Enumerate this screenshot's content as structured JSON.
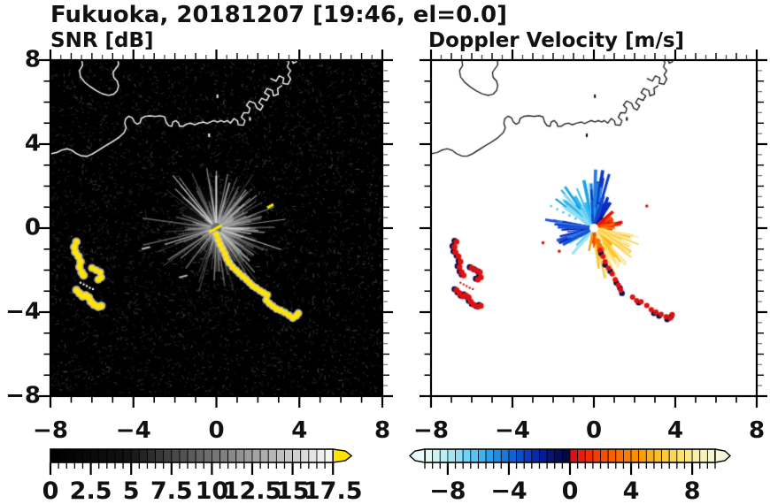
{
  "figure": {
    "title": "Fukuoka, 20181207 [19:46, el=0.0]"
  },
  "map": {
    "coastline": [
      [
        [
          -6.5,
          8.1
        ],
        [
          -6.45,
          7.75
        ],
        [
          -6.6,
          7.5
        ],
        [
          -6.55,
          7.2
        ],
        [
          -6.35,
          6.95
        ],
        [
          -6.1,
          6.75
        ],
        [
          -5.8,
          6.55
        ],
        [
          -5.5,
          6.4
        ],
        [
          -5.2,
          6.32
        ],
        [
          -4.95,
          6.38
        ],
        [
          -4.78,
          6.55
        ],
        [
          -4.72,
          6.78
        ],
        [
          -4.78,
          7.0
        ],
        [
          -4.95,
          7.18
        ],
        [
          -4.98,
          7.42
        ],
        [
          -4.85,
          7.6
        ],
        [
          -4.72,
          7.78
        ],
        [
          -4.75,
          8.1
        ]
      ],
      [
        [
          -8.1,
          3.52
        ],
        [
          -7.7,
          3.6
        ],
        [
          -7.45,
          3.72
        ],
        [
          -7.2,
          3.78
        ],
        [
          -6.95,
          3.7
        ],
        [
          -6.75,
          3.55
        ],
        [
          -6.5,
          3.44
        ],
        [
          -6.25,
          3.42
        ],
        [
          -6.0,
          3.52
        ],
        [
          -5.7,
          3.7
        ],
        [
          -5.35,
          3.92
        ],
        [
          -5.0,
          4.12
        ],
        [
          -4.7,
          4.32
        ],
        [
          -4.45,
          4.55
        ],
        [
          -4.35,
          4.78
        ],
        [
          -4.42,
          4.98
        ],
        [
          -4.38,
          5.2
        ],
        [
          -4.22,
          5.33
        ],
        [
          -4.05,
          5.25
        ],
        [
          -3.95,
          5.05
        ],
        [
          -3.82,
          4.95
        ],
        [
          -3.68,
          5.02
        ],
        [
          -3.62,
          5.22
        ],
        [
          -3.45,
          5.32
        ],
        [
          -3.2,
          5.35
        ],
        [
          -2.95,
          5.32
        ],
        [
          -2.7,
          5.35
        ],
        [
          -2.5,
          5.3
        ],
        [
          -2.42,
          5.05
        ],
        [
          -2.3,
          4.88
        ],
        [
          -2.15,
          4.85
        ],
        [
          -2.1,
          5.05
        ],
        [
          -1.95,
          5.12
        ],
        [
          -1.82,
          5.0
        ],
        [
          -1.78,
          4.85
        ],
        [
          -1.6,
          4.85
        ],
        [
          -1.45,
          4.95
        ],
        [
          -1.25,
          5.0
        ],
        [
          -1.05,
          4.92
        ],
        [
          -0.85,
          5.0
        ],
        [
          -0.62,
          5.05
        ],
        [
          -0.45,
          4.98
        ],
        [
          -0.3,
          5.05
        ],
        [
          -0.12,
          5.12
        ],
        [
          0.05,
          5.05
        ],
        [
          0.22,
          5.12
        ],
        [
          0.38,
          5.05
        ],
        [
          0.52,
          5.12
        ],
        [
          0.68,
          5.0
        ],
        [
          0.85,
          5.22
        ],
        [
          1.02,
          5.1
        ],
        [
          1.05,
          4.92
        ],
        [
          1.3,
          4.9
        ],
        [
          1.38,
          5.12
        ],
        [
          1.2,
          5.28
        ],
        [
          1.32,
          5.5
        ],
        [
          1.55,
          5.48
        ],
        [
          1.62,
          5.7
        ],
        [
          1.45,
          5.85
        ],
        [
          1.6,
          6.05
        ],
        [
          1.85,
          5.95
        ],
        [
          1.95,
          5.72
        ],
        [
          2.12,
          5.62
        ],
        [
          2.25,
          5.82
        ],
        [
          2.05,
          5.98
        ],
        [
          2.18,
          6.18
        ],
        [
          2.42,
          6.08
        ],
        [
          2.55,
          6.3
        ],
        [
          2.32,
          6.45
        ],
        [
          2.45,
          6.65
        ],
        [
          2.7,
          6.55
        ],
        [
          2.75,
          6.3
        ],
        [
          2.98,
          6.38
        ],
        [
          2.95,
          6.65
        ],
        [
          3.15,
          6.78
        ]
      ],
      [
        [
          2.62,
          7.12
        ],
        [
          2.88,
          7.0
        ],
        [
          3.02,
          7.25
        ],
        [
          3.25,
          7.15
        ],
        [
          3.2,
          6.9
        ],
        [
          3.45,
          6.85
        ],
        [
          3.58,
          7.1
        ],
        [
          3.45,
          7.3
        ],
        [
          3.58,
          7.5
        ],
        [
          3.42,
          7.68
        ],
        [
          3.5,
          7.9
        ],
        [
          3.3,
          8.1
        ]
      ],
      [
        [
          3.62,
          8.1
        ],
        [
          3.7,
          7.85
        ],
        [
          3.85,
          7.92
        ],
        [
          3.9,
          8.1
        ]
      ]
    ],
    "dots": [
      [
        0.05,
        6.28
      ],
      [
        -0.35,
        4.42
      ],
      [
        1.62,
        5.2
      ]
    ]
  },
  "chart_data": [
    {
      "id": "snr",
      "type": "heatmap",
      "title": "SNR [dB]",
      "xlim": [
        -8,
        8
      ],
      "ylim": [
        -8,
        8
      ],
      "x_tick_values": [
        -8,
        -4,
        0,
        4,
        8
      ],
      "x_tick_labels": [
        "−8",
        "−4",
        "0",
        "4",
        "8"
      ],
      "y_tick_values": [
        8,
        4,
        0,
        -4,
        -8
      ],
      "y_tick_labels": [
        "8",
        "4",
        "0",
        "−4",
        "−8"
      ],
      "background": "#000000",
      "coast_color": "#ffffff",
      "radar_center": [
        0,
        0
      ],
      "colorbar": {
        "min": 0,
        "max": 17.5,
        "cell_step": 0.5,
        "tick_values": [
          0,
          2.5,
          5,
          7.5,
          10,
          12.5,
          15,
          17.5
        ],
        "tick_labels": [
          "0",
          "2.5",
          "5",
          "7.5",
          "10",
          "12.5",
          "15",
          "17.5"
        ],
        "style": "grayscale",
        "overflow_high_color": "#ffe400"
      },
      "features": {
        "noise": {
          "seed": 11,
          "strokes": 3200,
          "dots": 750
        },
        "ray_fan": {
          "seed": 5,
          "count": 170,
          "len": [
            0.35,
            3.2
          ],
          "bias_sector": [
            -80,
            60
          ],
          "bias_count": 70,
          "bright_count": 16,
          "bright_len": [
            2.2,
            3.7
          ]
        },
        "high_color": "#ffe400",
        "halo_color": "#bdbdbd",
        "trail": [
          [
            0.0,
            -0.3
          ],
          [
            0.08,
            -0.55
          ],
          [
            0.18,
            -0.78
          ],
          [
            0.3,
            -1.0
          ],
          [
            0.42,
            -1.22
          ],
          [
            0.5,
            -1.45
          ],
          [
            0.62,
            -1.65
          ],
          [
            0.78,
            -1.85
          ],
          [
            0.95,
            -2.0
          ],
          [
            1.1,
            -2.15
          ],
          [
            1.28,
            -2.3
          ],
          [
            1.45,
            -2.45
          ],
          [
            1.6,
            -2.6
          ],
          [
            1.75,
            -2.75
          ],
          [
            1.92,
            -2.85
          ],
          [
            2.1,
            -2.98
          ],
          [
            2.28,
            -3.08
          ],
          [
            2.45,
            -3.18
          ],
          [
            2.4,
            -3.42
          ],
          [
            2.55,
            -3.58
          ],
          [
            2.72,
            -3.72
          ],
          [
            2.9,
            -3.85
          ],
          [
            3.1,
            -3.92
          ],
          [
            3.3,
            -4.02
          ],
          [
            3.5,
            -4.15
          ],
          [
            3.68,
            -4.28
          ],
          [
            3.85,
            -4.18
          ],
          [
            3.95,
            -4.05
          ]
        ],
        "cluster_a": [
          [
            -6.75,
            -0.65
          ],
          [
            -6.85,
            -0.9
          ],
          [
            -6.8,
            -1.15
          ],
          [
            -6.65,
            -1.35
          ],
          [
            -6.55,
            -1.6
          ],
          [
            -6.6,
            -1.85
          ],
          [
            -6.5,
            -2.1
          ],
          [
            -6.4,
            -2.25
          ]
        ],
        "cluster_b": [
          [
            -6.0,
            -1.9
          ],
          [
            -5.8,
            -2.0
          ],
          [
            -5.6,
            -2.1
          ],
          [
            -5.55,
            -2.35
          ],
          [
            -5.7,
            -2.45
          ]
        ],
        "cluster_c": [
          [
            -6.75,
            -2.95
          ],
          [
            -6.6,
            -3.1
          ],
          [
            -6.45,
            -3.25
          ],
          [
            -6.3,
            -3.2
          ],
          [
            -6.15,
            -3.3
          ],
          [
            -6.05,
            -3.5
          ],
          [
            -5.9,
            -3.65
          ],
          [
            -5.7,
            -3.75
          ],
          [
            -5.55,
            -3.7
          ]
        ],
        "dotted_link": [
          [
            -6.55,
            -2.6
          ],
          [
            -6.4,
            -2.68
          ],
          [
            -6.25,
            -2.76
          ],
          [
            -6.1,
            -2.84
          ],
          [
            -5.95,
            -2.9
          ]
        ],
        "isolated_marks": [
          [
            2.6,
            1.05
          ],
          [
            -0.2,
            -0.12
          ],
          [
            0.1,
            0.05
          ]
        ],
        "gray_marks": [
          [
            -1.6,
            -2.3
          ],
          [
            -3.4,
            -0.95
          ]
        ]
      }
    },
    {
      "id": "velocity",
      "type": "heatmap",
      "title": "Doppler Velocity [m/s]",
      "xlim": [
        -8,
        8
      ],
      "ylim": [
        -8,
        8
      ],
      "x_tick_values": [
        -8,
        -4,
        0,
        4,
        8
      ],
      "x_tick_labels": [
        "−8",
        "−4",
        "0",
        "4",
        "8"
      ],
      "y_tick_values": [
        8,
        4,
        0,
        -4,
        -8
      ],
      "y_tick_labels": [],
      "background": "#ffffff",
      "coast_color": "#000000",
      "radar_center": [
        0,
        0
      ],
      "colorbar": {
        "min": -9.5,
        "max": 9.5,
        "cell_step": 0.5,
        "tick_values": [
          -8,
          -4,
          0,
          4,
          8
        ],
        "tick_labels": [
          "−8",
          "−4",
          "0",
          "4",
          "8"
        ],
        "cell_colors": [
          "#e2f8f6",
          "#cdf4f2",
          "#b8eff2",
          "#a2e8f4",
          "#8adef6",
          "#70d2f6",
          "#57c4f4",
          "#3fb2f0",
          "#2a9fea",
          "#1f8ce2",
          "#1777da",
          "#1162d2",
          "#0d4eca",
          "#0a3bc0",
          "#0729ae",
          "#051d94",
          "#041478",
          "#030d5c",
          "#020842",
          "#e01010",
          "#e81e08",
          "#f02e04",
          "#f43e00",
          "#f84e00",
          "#fa5e00",
          "#fc6e00",
          "#fc7e00",
          "#fc8e00",
          "#fc9e04",
          "#fcae12",
          "#fcbe24",
          "#fccc38",
          "#fcd850",
          "#fce26c",
          "#fae88a",
          "#f8eea6",
          "#f6f2bc",
          "#f4f4d2"
        ],
        "arrow_low_color": "#e8fbfa",
        "arrow_high_color": "#f6f6dc"
      },
      "features": {
        "seed": 23,
        "sectors": [
          {
            "a": [
              96,
              148
            ],
            "n": 42,
            "len": [
              0.4,
              2.5
            ],
            "colors": [
              "#8fe0f6",
              "#5ccdf2",
              "#2fb6ee",
              "#18a2e8",
              "#bfeef8"
            ]
          },
          {
            "a": [
              74,
              96
            ],
            "n": 34,
            "len": [
              0.5,
              2.9
            ],
            "colors": [
              "#1d7de0",
              "#1157d0",
              "#0a38c4",
              "#2196ec"
            ]
          },
          {
            "a": [
              56,
              75
            ],
            "n": 20,
            "len": [
              0.4,
              1.7
            ],
            "colors": [
              "#0a2ec0",
              "#07209e",
              "#1346cc"
            ]
          },
          {
            "a": [
              38,
              58
            ],
            "n": 26,
            "len": [
              0.25,
              0.95
            ],
            "colors": [
              "#051478",
              "#030c54",
              "#07209e"
            ]
          },
          {
            "a": [
              8,
              42
            ],
            "n": 34,
            "len": [
              0.35,
              1.45
            ],
            "colors": [
              "#e81010",
              "#f23800",
              "#d40c0c",
              "#f64c00"
            ]
          },
          {
            "a": [
              -12,
              10
            ],
            "n": 20,
            "len": [
              0.3,
              1.1
            ],
            "colors": [
              "#f66000",
              "#f88600",
              "#ea2400"
            ]
          },
          {
            "a": [
              -52,
              -10
            ],
            "n": 40,
            "len": [
              0.4,
              2.4
            ],
            "colors": [
              "#fcb400",
              "#ffd24e",
              "#ffe382",
              "#f8edb2"
            ]
          },
          {
            "a": [
              -86,
              -50
            ],
            "n": 34,
            "len": [
              0.4,
              2.6
            ],
            "colors": [
              "#ffe076",
              "#fff0ae",
              "#fcc62e",
              "#f8edb2"
            ]
          },
          {
            "a": [
              -104,
              -84
            ],
            "n": 14,
            "len": [
              0.3,
              1.2
            ],
            "colors": [
              "#f87200",
              "#f44800",
              "#fc9c00"
            ]
          },
          {
            "a": [
              167,
              206
            ],
            "n": 28,
            "len": [
              0.5,
              2.5
            ],
            "colors": [
              "#1b50d8",
              "#0a2ec0",
              "#2f7ae8",
              "#0a1a9a"
            ]
          },
          {
            "a": [
              206,
              238
            ],
            "n": 8,
            "len": [
              0.7,
              2.1
            ],
            "colors": [
              "#49c8f0",
              "#1b50d8",
              "#9be4f6"
            ]
          }
        ],
        "cyan_dotted": [
          [
            -0.9,
            0.45
          ],
          [
            -1.2,
            0.6
          ],
          [
            -1.5,
            0.75
          ],
          [
            -1.8,
            0.9
          ],
          [
            -2.1,
            1.05
          ]
        ],
        "red": "#e01010",
        "navy": "#08104e",
        "orange": "#f57000",
        "trail_red": [
          [
            0.3,
            -1.05
          ],
          [
            0.45,
            -1.35
          ],
          [
            0.55,
            -1.6
          ],
          [
            0.72,
            -1.9
          ],
          [
            0.9,
            -2.18
          ],
          [
            1.05,
            -2.45
          ],
          [
            1.2,
            -2.72
          ],
          [
            1.32,
            -2.95
          ],
          [
            1.9,
            -3.28
          ],
          [
            2.1,
            -3.45
          ],
          [
            2.32,
            -3.5
          ],
          [
            2.6,
            -3.68
          ],
          [
            2.82,
            -3.88
          ],
          [
            3.05,
            -4.0
          ],
          [
            3.3,
            -4.1
          ],
          [
            3.55,
            -4.22
          ],
          [
            3.75,
            -4.28
          ],
          [
            3.85,
            -4.12
          ]
        ],
        "trail_navy": [
          [
            0.35,
            -1.2
          ],
          [
            0.55,
            -1.75
          ],
          [
            0.8,
            -2.05
          ],
          [
            1.1,
            -2.6
          ],
          [
            1.28,
            -2.85
          ],
          [
            1.38,
            -3.1
          ],
          [
            2.2,
            -3.55
          ],
          [
            2.95,
            -4.05
          ],
          [
            3.2,
            -4.18
          ],
          [
            3.6,
            -4.35
          ],
          [
            3.8,
            -4.2
          ]
        ],
        "trail_orange": [
          [
            0.18,
            -0.62
          ],
          [
            0.28,
            -0.85
          ],
          [
            0.38,
            -1.0
          ]
        ],
        "stray_red": [
          [
            2.6,
            1.05
          ],
          [
            -2.5,
            -0.7
          ],
          [
            -1.7,
            -1.1
          ]
        ],
        "isolated_marks": [
          [
            2.6,
            1.05
          ]
        ]
      }
    }
  ],
  "layout_labels": {
    "snr_y_axis_shown": "true",
    "vel_y_axis_shown": "false"
  }
}
